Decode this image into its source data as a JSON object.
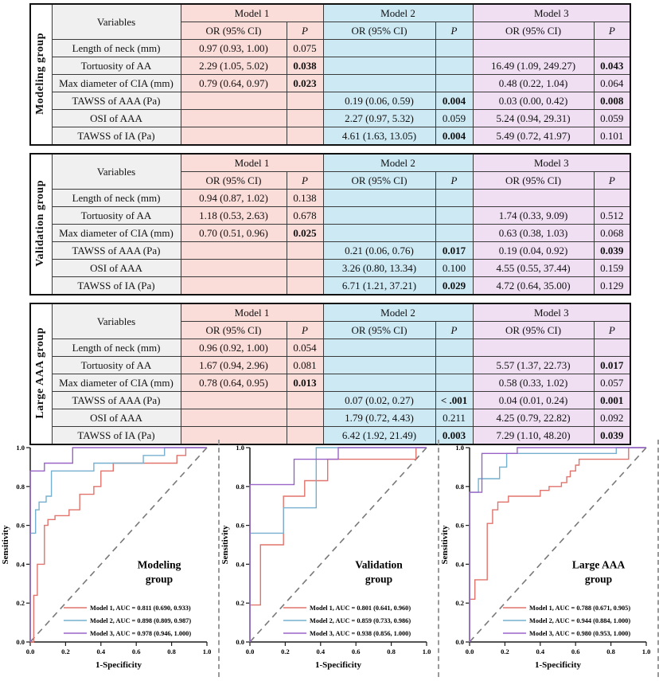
{
  "table_header": {
    "variables": "Variables",
    "or": "OR (95% CI)",
    "p": "P",
    "models": [
      "Model 1",
      "Model 2",
      "Model 3"
    ]
  },
  "tables": [
    {
      "group": "Modeling group",
      "rows": [
        {
          "variable": "Length of neck (mm)",
          "m1_or": "0.97  (0.93,  1.00)",
          "m1_p": "0.075",
          "m1_p_bold": false,
          "m2_or": "",
          "m2_p": "",
          "m2_p_bold": false,
          "m3_or": "",
          "m3_p": "",
          "m3_p_bold": false
        },
        {
          "variable": "Tortuosity of AA",
          "m1_or": "2.29  (1.05,  5.02)",
          "m1_p": "0.038",
          "m1_p_bold": true,
          "m2_or": "",
          "m2_p": "",
          "m2_p_bold": false,
          "m3_or": "16.49  (1.09,  249.27)",
          "m3_p": "0.043",
          "m3_p_bold": true
        },
        {
          "variable": "Max diameter of CIA (mm)",
          "m1_or": "0.79  (0.64,  0.97)",
          "m1_p": "0.023",
          "m1_p_bold": true,
          "m2_or": "",
          "m2_p": "",
          "m2_p_bold": false,
          "m3_or": "0.48  (0.22,  1.04)",
          "m3_p": "0.064",
          "m3_p_bold": false
        },
        {
          "variable": "TAWSS of AAA (Pa)",
          "m1_or": "",
          "m1_p": "",
          "m1_p_bold": false,
          "m2_or": "0.19  (0.06,  0.59)",
          "m2_p": "0.004",
          "m2_p_bold": true,
          "m3_or": "0.03 (0.00, 0.42)",
          "m3_p": "0.008",
          "m3_p_bold": true
        },
        {
          "variable": "OSI of AAA",
          "m1_or": "",
          "m1_p": "",
          "m1_p_bold": false,
          "m2_or": "2.27  (0.97,  5.32)",
          "m2_p": "0.059",
          "m2_p_bold": false,
          "m3_or": "5.24 (0.94, 29.31)",
          "m3_p": "0.059",
          "m3_p_bold": false
        },
        {
          "variable": "TAWSS of IA (Pa)",
          "m1_or": "",
          "m1_p": "",
          "m1_p_bold": false,
          "m2_or": "4.61  (1.63,  13.05)",
          "m2_p": "0.004",
          "m2_p_bold": true,
          "m3_or": "5.49  (0.72,  41.97)",
          "m3_p": "0.101",
          "m3_p_bold": false
        }
      ]
    },
    {
      "group": "Validation group",
      "rows": [
        {
          "variable": "Length of neck (mm)",
          "m1_or": "0.94  (0.87,  1.02)",
          "m1_p": "0.138",
          "m1_p_bold": false,
          "m2_or": "",
          "m2_p": "",
          "m2_p_bold": false,
          "m3_or": "",
          "m3_p": "",
          "m3_p_bold": false
        },
        {
          "variable": "Tortuosity of AA",
          "m1_or": "1.18  (0.53,  2.63)",
          "m1_p": "0.678",
          "m1_p_bold": false,
          "m2_or": "",
          "m2_p": "",
          "m2_p_bold": false,
          "m3_or": "1.74  (0.33,  9.09)",
          "m3_p": "0.512",
          "m3_p_bold": false
        },
        {
          "variable": "Max diameter of CIA (mm)",
          "m1_or": "0.70  (0.51,  0.96)",
          "m1_p": "0.025",
          "m1_p_bold": true,
          "m2_or": "",
          "m2_p": "",
          "m2_p_bold": false,
          "m3_or": "0.63  (0.38,  1.03)",
          "m3_p": "0.068",
          "m3_p_bold": false
        },
        {
          "variable": "TAWSS of AAA (Pa)",
          "m1_or": "",
          "m1_p": "",
          "m1_p_bold": false,
          "m2_or": "0.21  (0.06,  0.76)",
          "m2_p": "0.017",
          "m2_p_bold": true,
          "m3_or": "0.19  (0.04,  0.92)",
          "m3_p": "0.039",
          "m3_p_bold": true
        },
        {
          "variable": "OSI of AAA",
          "m1_or": "",
          "m1_p": "",
          "m1_p_bold": false,
          "m2_or": "3.26  (0.80,  13.34)",
          "m2_p": "0.100",
          "m2_p_bold": false,
          "m3_or": "4.55 (0.55, 37.44)",
          "m3_p": "0.159",
          "m3_p_bold": false
        },
        {
          "variable": "TAWSS of IA (Pa)",
          "m1_or": "",
          "m1_p": "",
          "m1_p_bold": false,
          "m2_or": "6.71  (1.21,  37.21)",
          "m2_p": "0.029",
          "m2_p_bold": true,
          "m3_or": "4.72 (0.64, 35.00)",
          "m3_p": "0.129",
          "m3_p_bold": false
        }
      ]
    },
    {
      "group": "Large AAA group",
      "rows": [
        {
          "variable": "Length of neck (mm)",
          "m1_or": "0.96  (0.92,  1.00)",
          "m1_p": "0.054",
          "m1_p_bold": false,
          "m2_or": "",
          "m2_p": "",
          "m2_p_bold": false,
          "m3_or": "",
          "m3_p": "",
          "m3_p_bold": false
        },
        {
          "variable": "Tortuosity of AA",
          "m1_or": "1.67  (0.94,  2.96)",
          "m1_p": "0.081",
          "m1_p_bold": false,
          "m2_or": "",
          "m2_p": "",
          "m2_p_bold": false,
          "m3_or": "5.57  (1.37,  22.73)",
          "m3_p": "0.017",
          "m3_p_bold": true
        },
        {
          "variable": "Max diameter of CIA (mm)",
          "m1_or": "0.78  (0.64,  0.95)",
          "m1_p": "0.013",
          "m1_p_bold": true,
          "m2_or": "",
          "m2_p": "",
          "m2_p_bold": false,
          "m3_or": "0.58  (0.33,  1.02)",
          "m3_p": "0.057",
          "m3_p_bold": false
        },
        {
          "variable": "TAWSS of AAA (Pa)",
          "m1_or": "",
          "m1_p": "",
          "m1_p_bold": false,
          "m2_or": "0.07  (0.02,  0.27)",
          "m2_p": "< .001",
          "m2_p_bold": true,
          "m3_or": "0.04  (0.01,  0.24)",
          "m3_p": "0.001",
          "m3_p_bold": true
        },
        {
          "variable": "OSI of AAA",
          "m1_or": "",
          "m1_p": "",
          "m1_p_bold": false,
          "m2_or": "1.79  (0.72,  4.43)",
          "m2_p": "0.211",
          "m2_p_bold": false,
          "m3_or": "4.25 (0.79, 22.82)",
          "m3_p": "0.092",
          "m3_p_bold": false
        },
        {
          "variable": "TAWSS of IA (Pa)",
          "m1_or": "",
          "m1_p": "",
          "m1_p_bold": false,
          "m2_or": "6.42  (1.92,  21.49)",
          "m2_p": "0.003",
          "m2_p_bold": true,
          "m3_or": "7.29 (1.10, 48.20)",
          "m3_p": "0.039",
          "m3_p_bold": true
        }
      ]
    }
  ],
  "chart_data": [
    {
      "type": "line",
      "title": "Modeling group",
      "title_lines": [
        "Modeling",
        "group"
      ],
      "xlabel": "1-Specificity",
      "ylabel": "Sensitivity",
      "xlim": [
        0,
        1
      ],
      "ylim": [
        0,
        1
      ],
      "tick_labels": [
        "0.0",
        "0.2",
        "0.4",
        "0.6",
        "0.8",
        "1.0"
      ],
      "grid": false,
      "legend_position": "lower right",
      "diagonal_reference": true,
      "series": [
        {
          "name": "Model 1, AUC = 0.811 (0.690, 0.933)",
          "auc": 0.811,
          "ci": [
            0.69,
            0.933
          ],
          "color_key": "roc_red",
          "points": [
            [
              0.02,
              0.24
            ],
            [
              0.04,
              0.4
            ],
            [
              0.08,
              0.6
            ],
            [
              0.1,
              0.63
            ],
            [
              0.14,
              0.65
            ],
            [
              0.22,
              0.68
            ],
            [
              0.28,
              0.76
            ],
            [
              0.36,
              0.8
            ],
            [
              0.4,
              0.88
            ],
            [
              0.47,
              0.92
            ],
            [
              0.83,
              0.96
            ],
            [
              0.88,
              1.0
            ]
          ]
        },
        {
          "name": "Model 2, AUC = 0.898 (0.809, 0.987)",
          "auc": 0.898,
          "ci": [
            0.809,
            0.987
          ],
          "color_key": "roc_blue",
          "points": [
            [
              0,
              0.56
            ],
            [
              0.03,
              0.68
            ],
            [
              0.05,
              0.72
            ],
            [
              0.09,
              0.75
            ],
            [
              0.12,
              0.88
            ],
            [
              0.36,
              0.92
            ],
            [
              0.64,
              0.96
            ],
            [
              0.76,
              1.0
            ]
          ]
        },
        {
          "name": "Model 3, AUC = 0.978 (0.946, 1.000)",
          "auc": 0.978,
          "ci": [
            0.946,
            1.0
          ],
          "color_key": "roc_purple",
          "points": [
            [
              0,
              0.88
            ],
            [
              0.08,
              0.92
            ],
            [
              0.24,
              1.0
            ]
          ]
        }
      ]
    },
    {
      "type": "line",
      "title": "Validation group",
      "title_lines": [
        "Validation",
        "group"
      ],
      "xlabel": "1-Specificity",
      "ylabel": "Sensitivity",
      "xlim": [
        0,
        1
      ],
      "ylim": [
        0,
        1
      ],
      "tick_labels": [
        "0.0",
        "0.2",
        "0.4",
        "0.6",
        "0.8",
        "1.0"
      ],
      "grid": false,
      "legend_position": "lower right",
      "diagonal_reference": true,
      "series": [
        {
          "name": "Model 1, AUC = 0.801 (0.641, 0.960)",
          "auc": 0.801,
          "ci": [
            0.641,
            0.96
          ],
          "color_key": "roc_red",
          "points": [
            [
              0,
              0.19
            ],
            [
              0.06,
              0.5
            ],
            [
              0.19,
              0.75
            ],
            [
              0.31,
              0.83
            ],
            [
              0.44,
              0.94
            ],
            [
              0.94,
              1.0
            ]
          ]
        },
        {
          "name": "Model 2, AUC = 0.859 (0.733, 0.986)",
          "auc": 0.859,
          "ci": [
            0.733,
            0.986
          ],
          "color_key": "roc_blue",
          "points": [
            [
              0,
              0.56
            ],
            [
              0.19,
              0.69
            ],
            [
              0.375,
              1.0
            ]
          ]
        },
        {
          "name": "Model 3, AUC = 0.938 (0.856, 1.000)",
          "auc": 0.938,
          "ci": [
            0.856,
            1.0
          ],
          "color_key": "roc_purple",
          "points": [
            [
              0,
              0.81
            ],
            [
              0.25,
              0.94
            ],
            [
              0.5,
              1.0
            ]
          ]
        }
      ]
    },
    {
      "type": "line",
      "title": "Large AAA group",
      "title_lines": [
        "Large AAA",
        "group"
      ],
      "xlabel": "1-Specificity",
      "ylabel": "Sensitivity",
      "xlim": [
        0,
        1
      ],
      "ylim": [
        0,
        1
      ],
      "tick_labels": [
        "0.0",
        "0.2",
        "0.4",
        "0.6",
        "0.8",
        "1.0"
      ],
      "grid": false,
      "legend_position": "lower right",
      "diagonal_reference": true,
      "series": [
        {
          "name": "Model 1, AUC = 0.788 (0.671, 0.905)",
          "auc": 0.788,
          "ci": [
            0.671,
            0.905
          ],
          "color_key": "roc_red",
          "points": [
            [
              0,
              0.22
            ],
            [
              0.03,
              0.32
            ],
            [
              0.1,
              0.61
            ],
            [
              0.13,
              0.68
            ],
            [
              0.16,
              0.72
            ],
            [
              0.22,
              0.75
            ],
            [
              0.4,
              0.78
            ],
            [
              0.45,
              0.8
            ],
            [
              0.52,
              0.82
            ],
            [
              0.55,
              0.85
            ],
            [
              0.57,
              0.88
            ],
            [
              0.6,
              0.91
            ],
            [
              0.62,
              0.94
            ],
            [
              0.9,
              1.0
            ]
          ]
        },
        {
          "name": "Model 2, AUC = 0.944 (0.884, 1.000)",
          "auc": 0.944,
          "ci": [
            0.884,
            1.0
          ],
          "color_key": "roc_blue",
          "points": [
            [
              0,
              0.77
            ],
            [
              0.05,
              0.84
            ],
            [
              0.17,
              0.9
            ],
            [
              0.21,
              0.97
            ],
            [
              0.83,
              1.0
            ]
          ]
        },
        {
          "name": "Model 3, AUC = 0.980 (0.953, 1.000)",
          "auc": 0.98,
          "ci": [
            0.953,
            1.0
          ],
          "color_key": "roc_purple",
          "points": [
            [
              0,
              0.77
            ],
            [
              0.07,
              0.97
            ],
            [
              0.27,
              1.0
            ]
          ]
        }
      ]
    }
  ],
  "colors": {
    "model1_fill": "#fadcd9",
    "model2_fill": "#cde9f4",
    "model3_fill": "#f0def3",
    "variables_fill": "#f0f0f0",
    "roc_red": "#e0736c",
    "roc_blue": "#77b0cf",
    "roc_purple": "#9a63c8",
    "reference_line": "#787878"
  }
}
